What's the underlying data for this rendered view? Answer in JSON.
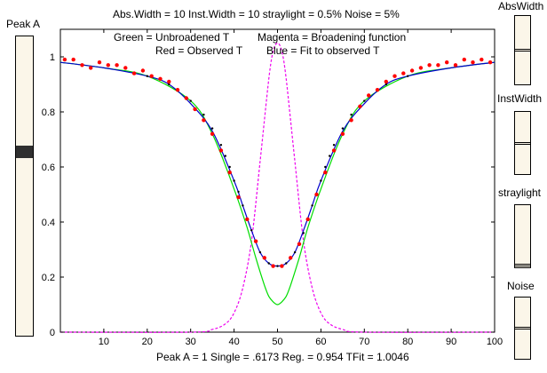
{
  "top_title": "Abs.Width = 10   Inst.Width = 10    straylight = 0.5%    Noise = 5%",
  "bottom_title": "Peak A = 1   Single = .6173   Reg. = 0.954  TFit = 1.0046",
  "sliders": {
    "peak_a": {
      "label": "Peak A",
      "level": 0.62
    },
    "abs_width": {
      "label": "AbsWidth",
      "level": 0.5
    },
    "inst_width": {
      "label": "InstWidth",
      "level": 0.5
    },
    "straylight": {
      "label": "straylight",
      "level": 0.02
    },
    "noise": {
      "label": "Noise",
      "level": 0.5
    }
  },
  "legend": {
    "line1_left": "Green = Unbroadened T",
    "line1_right": "Magenta = Broadening function",
    "line2_left": "Red = Observed T",
    "line2_right": "Blue = Fit to observed T"
  },
  "colors": {
    "green": "#00dd00",
    "magenta": "#ee00ee",
    "red": "#ff0000",
    "blue": "#0000cc",
    "black": "#000000",
    "slider_bg": "#fbf6e9"
  },
  "chart_data": {
    "type": "line",
    "xlim": [
      0,
      100
    ],
    "ylim": [
      0,
      1.1
    ],
    "xticks": [
      10,
      20,
      30,
      40,
      50,
      60,
      70,
      80,
      90,
      100
    ],
    "yticks": [
      0,
      0.2,
      0.4,
      0.6,
      0.8,
      1
    ],
    "ytick_labels": [
      "0",
      "0.2",
      "0.4",
      "0.6",
      "0.8",
      "1"
    ],
    "grid": false,
    "series": [
      {
        "name": "Unbroadened T",
        "color": "green",
        "style": "solid",
        "x": [
          0,
          10,
          20,
          30,
          35,
          40,
          43,
          45,
          47,
          48,
          49,
          50,
          51,
          52,
          53,
          55,
          57,
          60,
          65,
          70,
          80,
          90,
          100
        ],
        "y": [
          0.98,
          0.96,
          0.93,
          0.84,
          0.72,
          0.52,
          0.38,
          0.27,
          0.17,
          0.13,
          0.11,
          0.1,
          0.11,
          0.13,
          0.17,
          0.27,
          0.38,
          0.52,
          0.72,
          0.84,
          0.93,
          0.96,
          0.98
        ]
      },
      {
        "name": "Broadening function",
        "color": "magenta",
        "style": "dashed",
        "x": [
          0,
          30,
          35,
          38,
          40,
          42,
          44,
          46,
          48,
          49,
          50,
          51,
          52,
          54,
          56,
          58,
          60,
          62,
          65,
          70,
          100
        ],
        "y": [
          0,
          0,
          0.01,
          0.03,
          0.07,
          0.16,
          0.33,
          0.62,
          0.92,
          1.02,
          1.05,
          1.02,
          0.92,
          0.62,
          0.33,
          0.16,
          0.07,
          0.03,
          0.01,
          0,
          0
        ]
      },
      {
        "name": "Fit to observed T",
        "color": "blue",
        "style": "solid",
        "x": [
          0,
          10,
          20,
          25,
          30,
          35,
          40,
          42,
          44,
          46,
          48,
          50,
          52,
          54,
          56,
          58,
          60,
          65,
          70,
          75,
          80,
          90,
          100
        ],
        "y": [
          0.98,
          0.96,
          0.93,
          0.9,
          0.83,
          0.73,
          0.55,
          0.46,
          0.37,
          0.29,
          0.25,
          0.24,
          0.25,
          0.29,
          0.37,
          0.46,
          0.55,
          0.73,
          0.83,
          0.9,
          0.93,
          0.96,
          0.98
        ]
      },
      {
        "name": "Observed T",
        "color": "red",
        "style": "dots",
        "x": [
          1,
          3,
          5,
          7,
          9,
          11,
          13,
          15,
          17,
          19,
          21,
          23,
          25,
          27,
          29,
          31,
          33,
          35,
          37,
          39,
          41,
          43,
          45,
          47,
          49,
          51,
          53,
          55,
          57,
          59,
          61,
          63,
          65,
          67,
          69,
          71,
          73,
          75,
          77,
          79,
          81,
          83,
          85,
          87,
          89,
          91,
          93,
          95,
          97,
          99
        ],
        "y": [
          0.99,
          0.99,
          0.97,
          0.96,
          0.98,
          0.97,
          0.97,
          0.96,
          0.94,
          0.95,
          0.93,
          0.92,
          0.91,
          0.88,
          0.85,
          0.81,
          0.77,
          0.72,
          0.66,
          0.58,
          0.49,
          0.41,
          0.33,
          0.27,
          0.24,
          0.24,
          0.27,
          0.32,
          0.41,
          0.5,
          0.58,
          0.66,
          0.72,
          0.77,
          0.82,
          0.86,
          0.88,
          0.91,
          0.93,
          0.94,
          0.95,
          0.96,
          0.97,
          0.97,
          0.98,
          0.97,
          0.99,
          0.98,
          0.99,
          0.98
        ]
      },
      {
        "name": "Observed T points",
        "color": "black",
        "style": "small-dots",
        "x": [
          20,
          25,
          30,
          33,
          35,
          37,
          38,
          39,
          40,
          41,
          42,
          43,
          44,
          45,
          46,
          47,
          48,
          49,
          50,
          51,
          52,
          53,
          54,
          55,
          56,
          57,
          58,
          59,
          60,
          61,
          62,
          63,
          65,
          67,
          70,
          75,
          80
        ],
        "y": [
          0.93,
          0.9,
          0.84,
          0.79,
          0.74,
          0.68,
          0.64,
          0.6,
          0.55,
          0.51,
          0.46,
          0.41,
          0.37,
          0.33,
          0.29,
          0.27,
          0.25,
          0.24,
          0.24,
          0.24,
          0.25,
          0.27,
          0.29,
          0.32,
          0.36,
          0.41,
          0.46,
          0.5,
          0.55,
          0.6,
          0.64,
          0.68,
          0.74,
          0.79,
          0.84,
          0.9,
          0.93
        ]
      }
    ]
  }
}
